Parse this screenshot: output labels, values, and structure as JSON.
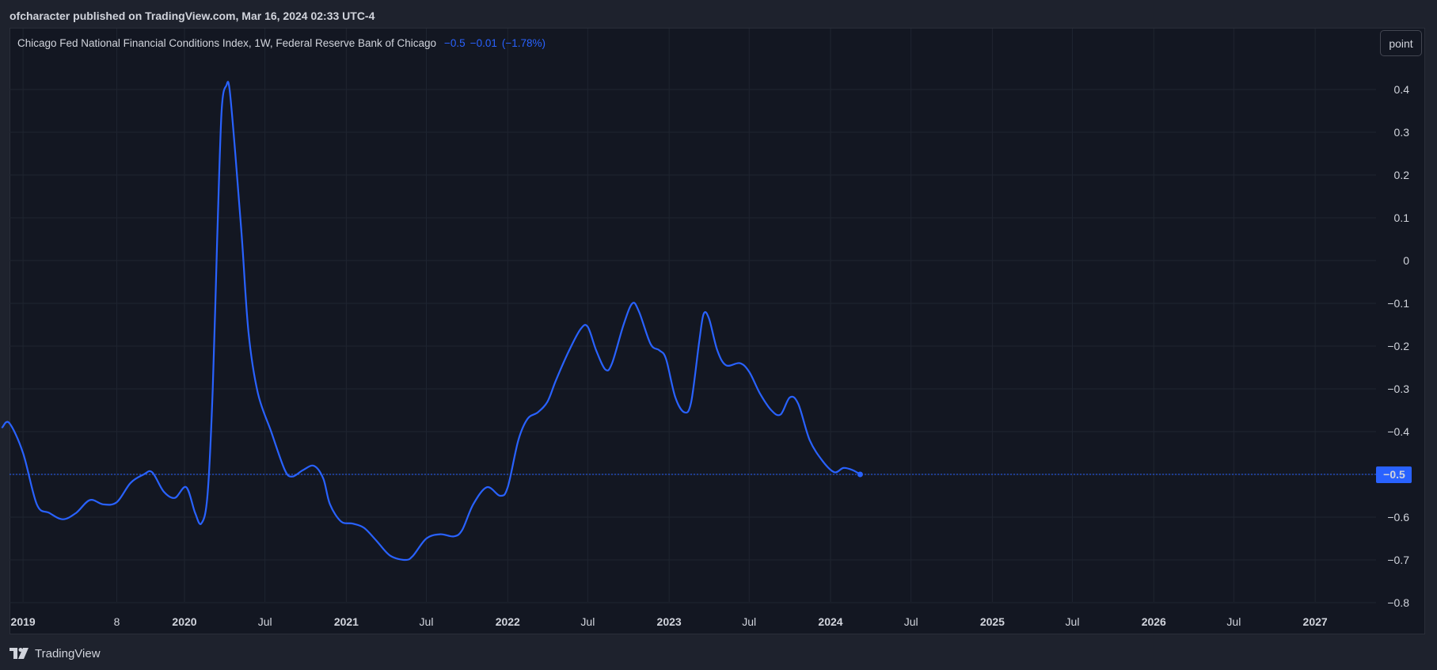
{
  "header": {
    "published_text": "ofcharacter published on TradingView.com, Mar 16, 2024 02:33 UTC-4"
  },
  "legend": {
    "title": "Chicago Fed National Financial Conditions Index, 1W, Federal Reserve Bank of Chicago",
    "value": "−0.5",
    "change": "−0.01",
    "change_pct": "(−1.78%)"
  },
  "scale_button": {
    "label": "point"
  },
  "footer": {
    "brand": "TradingView",
    "icon": "tradingview-logo-icon"
  },
  "colors": {
    "line": "#2962ff",
    "background": "#131722",
    "grid": "#1f2430",
    "text": "#d1d4dc",
    "last_value_badge": "#2962ff"
  },
  "chart_data": {
    "type": "line",
    "title": "Chicago Fed National Financial Conditions Index",
    "interval": "1W",
    "source": "Federal Reserve Bank of Chicago",
    "ylim": [
      -0.8,
      0.4
    ],
    "grid": true,
    "y_ticks": [
      "0.4",
      "0.3",
      "0.2",
      "0.1",
      "0",
      "−0.1",
      "−0.2",
      "−0.3",
      "−0.4",
      "−0.5",
      "−0.6",
      "−0.7",
      "−0.8"
    ],
    "y_tick_values": [
      0.4,
      0.3,
      0.2,
      0.1,
      0,
      -0.1,
      -0.2,
      -0.3,
      -0.4,
      -0.5,
      -0.6,
      -0.7,
      -0.8
    ],
    "x_ticks": [
      {
        "label": "2019",
        "date": "2019-01-01",
        "year": true
      },
      {
        "label": "8",
        "date": "2019-08-01",
        "year": false
      },
      {
        "label": "2020",
        "date": "2020-01-01",
        "year": true
      },
      {
        "label": "Jul",
        "date": "2020-07-01",
        "year": false
      },
      {
        "label": "2021",
        "date": "2021-01-01",
        "year": true
      },
      {
        "label": "Jul",
        "date": "2021-07-01",
        "year": false
      },
      {
        "label": "2022",
        "date": "2022-01-01",
        "year": true
      },
      {
        "label": "Jul",
        "date": "2022-07-01",
        "year": false
      },
      {
        "label": "2023",
        "date": "2023-01-01",
        "year": true
      },
      {
        "label": "Jul",
        "date": "2023-07-01",
        "year": false
      },
      {
        "label": "2024",
        "date": "2024-01-01",
        "year": true
      },
      {
        "label": "Jul",
        "date": "2024-07-01",
        "year": false
      },
      {
        "label": "2025",
        "date": "2025-01-01",
        "year": true
      },
      {
        "label": "Jul",
        "date": "2025-07-01",
        "year": false
      },
      {
        "label": "2026",
        "date": "2026-01-01",
        "year": true
      },
      {
        "label": "Jul",
        "date": "2026-07-01",
        "year": false
      },
      {
        "label": "2027",
        "date": "2027-01-01",
        "year": true
      }
    ],
    "last_value_label": "−0.5",
    "last_value": -0.5,
    "series": [
      {
        "points": [
          [
            "2018-11-15",
            -0.39
          ],
          [
            "2018-12-01",
            -0.38
          ],
          [
            "2019-01-01",
            -0.45
          ],
          [
            "2019-02-01",
            -0.57
          ],
          [
            "2019-03-01",
            -0.59
          ],
          [
            "2019-04-01",
            -0.605
          ],
          [
            "2019-05-01",
            -0.59
          ],
          [
            "2019-06-01",
            -0.56
          ],
          [
            "2019-07-01",
            -0.57
          ],
          [
            "2019-08-01",
            -0.565
          ],
          [
            "2019-09-01",
            -0.52
          ],
          [
            "2019-10-01",
            -0.5
          ],
          [
            "2019-10-20",
            -0.495
          ],
          [
            "2019-11-15",
            -0.54
          ],
          [
            "2019-12-10",
            -0.555
          ],
          [
            "2020-01-05",
            -0.53
          ],
          [
            "2020-01-25",
            -0.59
          ],
          [
            "2020-02-08",
            -0.615
          ],
          [
            "2020-02-22",
            -0.55
          ],
          [
            "2020-03-05",
            -0.3
          ],
          [
            "2020-03-15",
            0.05
          ],
          [
            "2020-03-25",
            0.35
          ],
          [
            "2020-04-05",
            0.41
          ],
          [
            "2020-04-12",
            0.4
          ],
          [
            "2020-04-25",
            0.25
          ],
          [
            "2020-05-10",
            0.05
          ],
          [
            "2020-05-25",
            -0.17
          ],
          [
            "2020-06-15",
            -0.31
          ],
          [
            "2020-07-15",
            -0.4
          ],
          [
            "2020-08-15",
            -0.49
          ],
          [
            "2020-09-01",
            -0.505
          ],
          [
            "2020-09-25",
            -0.49
          ],
          [
            "2020-10-20",
            -0.48
          ],
          [
            "2020-11-10",
            -0.51
          ],
          [
            "2020-11-25",
            -0.57
          ],
          [
            "2020-12-20",
            -0.61
          ],
          [
            "2021-01-15",
            -0.615
          ],
          [
            "2021-02-10",
            -0.625
          ],
          [
            "2021-03-10",
            -0.655
          ],
          [
            "2021-04-10",
            -0.69
          ],
          [
            "2021-05-15",
            -0.7
          ],
          [
            "2021-06-01",
            -0.69
          ],
          [
            "2021-07-01",
            -0.65
          ],
          [
            "2021-08-01",
            -0.64
          ],
          [
            "2021-09-01",
            -0.645
          ],
          [
            "2021-09-20",
            -0.63
          ],
          [
            "2021-10-15",
            -0.57
          ],
          [
            "2021-11-15",
            -0.53
          ],
          [
            "2021-12-15",
            -0.55
          ],
          [
            "2022-01-01",
            -0.53
          ],
          [
            "2022-01-25",
            -0.42
          ],
          [
            "2022-02-15",
            -0.37
          ],
          [
            "2022-03-10",
            -0.355
          ],
          [
            "2022-04-01",
            -0.33
          ],
          [
            "2022-04-20",
            -0.28
          ],
          [
            "2022-05-20",
            -0.21
          ],
          [
            "2022-06-15",
            -0.16
          ],
          [
            "2022-07-01",
            -0.155
          ],
          [
            "2022-07-20",
            -0.21
          ],
          [
            "2022-08-10",
            -0.255
          ],
          [
            "2022-08-25",
            -0.24
          ],
          [
            "2022-09-20",
            -0.15
          ],
          [
            "2022-10-10",
            -0.1
          ],
          [
            "2022-10-25",
            -0.12
          ],
          [
            "2022-11-20",
            -0.195
          ],
          [
            "2022-12-10",
            -0.21
          ],
          [
            "2022-12-25",
            -0.23
          ],
          [
            "2023-01-15",
            -0.32
          ],
          [
            "2023-02-05",
            -0.355
          ],
          [
            "2023-02-20",
            -0.33
          ],
          [
            "2023-03-10",
            -0.19
          ],
          [
            "2023-03-20",
            -0.125
          ],
          [
            "2023-04-01",
            -0.135
          ],
          [
            "2023-04-20",
            -0.21
          ],
          [
            "2023-05-10",
            -0.245
          ],
          [
            "2023-06-10",
            -0.24
          ],
          [
            "2023-07-01",
            -0.26
          ],
          [
            "2023-07-25",
            -0.31
          ],
          [
            "2023-08-20",
            -0.35
          ],
          [
            "2023-09-10",
            -0.36
          ],
          [
            "2023-10-01",
            -0.32
          ],
          [
            "2023-10-20",
            -0.335
          ],
          [
            "2023-11-15",
            -0.42
          ],
          [
            "2023-12-15",
            -0.47
          ],
          [
            "2024-01-10",
            -0.495
          ],
          [
            "2024-01-30",
            -0.485
          ],
          [
            "2024-02-20",
            -0.49
          ],
          [
            "2024-03-08",
            -0.5
          ]
        ]
      }
    ]
  }
}
